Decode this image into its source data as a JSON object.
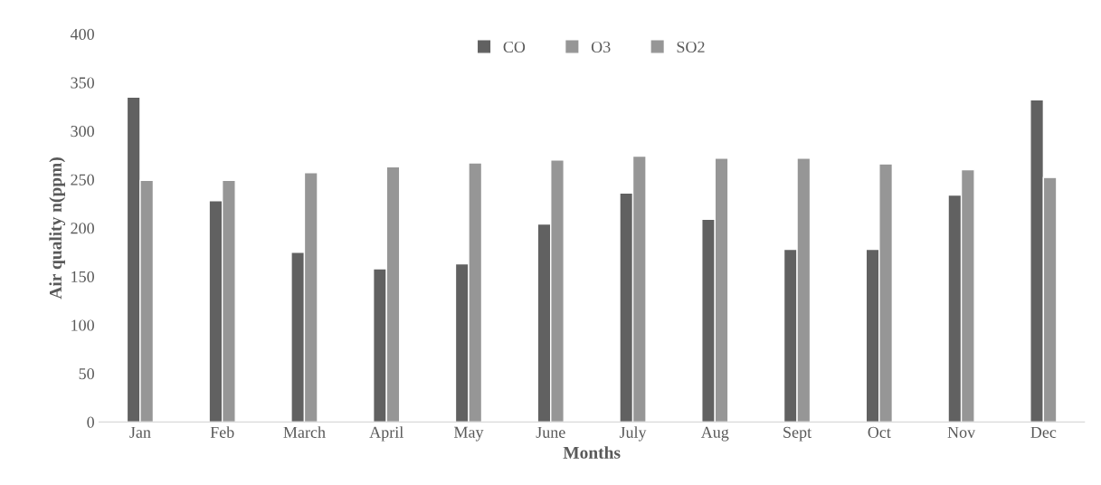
{
  "chart_data": {
    "type": "bar",
    "xlabel": "Months",
    "ylabel": "Air quality n(ppm)",
    "categories": [
      "Jan",
      "Feb",
      "March",
      "April",
      "May",
      "June",
      "July",
      "Aug",
      "Sept",
      "Oct",
      "Nov",
      "Dec"
    ],
    "series": [
      {
        "name": "CO",
        "color": "#616161",
        "values": [
          335,
          228,
          175,
          158,
          163,
          204,
          236,
          209,
          178,
          178,
          234,
          332
        ]
      },
      {
        "name": "O3",
        "color": "#969696",
        "values": [
          249,
          249,
          257,
          263,
          267,
          270,
          274,
          272,
          272,
          266,
          260,
          252
        ]
      },
      {
        "name": "SO2",
        "color": "#969696",
        "values": [
          null,
          null,
          null,
          null,
          null,
          null,
          null,
          null,
          null,
          null,
          null,
          null
        ]
      }
    ],
    "ylim": [
      0,
      400
    ],
    "yticks": [
      0,
      50,
      100,
      150,
      200,
      250,
      300,
      350,
      400
    ],
    "grid": false,
    "legend": "top"
  }
}
